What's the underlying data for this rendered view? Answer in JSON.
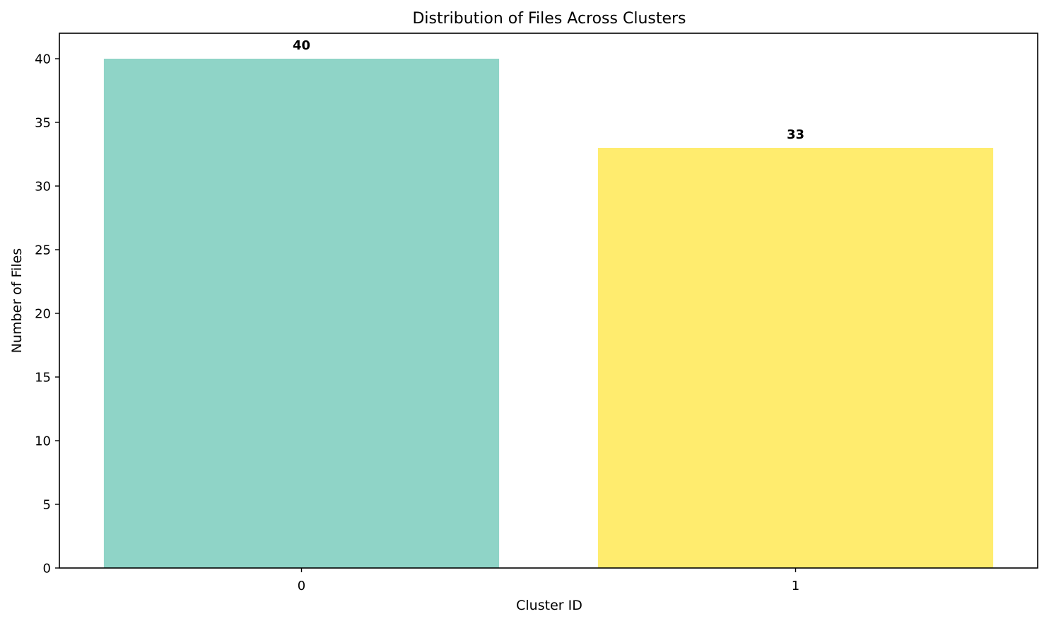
{
  "chart_data": {
    "type": "bar",
    "title": "Distribution of Files Across Clusters",
    "xlabel": "Cluster ID",
    "ylabel": "Number of Files",
    "categories": [
      "0",
      "1"
    ],
    "values": [
      40,
      33
    ],
    "value_labels": [
      "40",
      "33"
    ],
    "bar_colors": [
      "#8fd4c7",
      "#ffec6e"
    ],
    "ylim": [
      0,
      42
    ],
    "yticks": [
      0,
      5,
      10,
      15,
      20,
      25,
      30,
      35,
      40
    ],
    "grid": false,
    "legend": false
  }
}
